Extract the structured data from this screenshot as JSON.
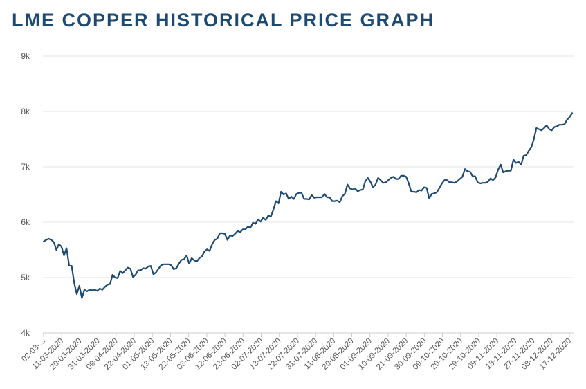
{
  "chart_data": {
    "type": "line",
    "title": "LME COPPER HISTORICAL PRICE GRAPH",
    "xlabel": "",
    "ylabel": "",
    "ylim": [
      4000,
      9000
    ],
    "y_ticks": [
      {
        "value": 4000,
        "label": "4k"
      },
      {
        "value": 5000,
        "label": "5k"
      },
      {
        "value": 6000,
        "label": "6k"
      },
      {
        "value": 7000,
        "label": "7k"
      },
      {
        "value": 8000,
        "label": "8k"
      },
      {
        "value": 9000,
        "label": "9k"
      }
    ],
    "x_tick_labels": [
      "02-03-...",
      "11-03-2020",
      "20-03-2020",
      "31-03-2020",
      "09-04-2020",
      "22-04-2020",
      "01-05-2020",
      "13-05-2020",
      "22-05-2020",
      "03-06-2020",
      "12-06-2020",
      "23-06-2020",
      "02-07-2020",
      "13-07-2020",
      "22-07-2020",
      "31-07-2020",
      "11-08-2020",
      "20-08-2020",
      "01-09-2020",
      "10-09-2020",
      "21-09-2020",
      "30-09-2020",
      "09-10-2020",
      "20-10-2020",
      "29-10-2020",
      "09-11-2020",
      "18-11-2020",
      "27-11-2020",
      "08-12-2020",
      "17-12-2020"
    ],
    "grid": true,
    "legend": "none",
    "line_color": "#1d4a73",
    "series": [
      {
        "name": "",
        "values": [
          5650,
          5680,
          5700,
          5680,
          5640,
          5500,
          5600,
          5560,
          5400,
          5530,
          5220,
          5210,
          4900,
          4700,
          4850,
          4630,
          4780,
          4750,
          4780,
          4770,
          4780,
          4760,
          4800,
          4780,
          4830,
          4870,
          4880,
          5050,
          5000,
          4990,
          5120,
          5080,
          5130,
          5180,
          5160,
          5010,
          5050,
          5130,
          5130,
          5170,
          5160,
          5200,
          5210,
          5060,
          5090,
          5160,
          5220,
          5240,
          5240,
          5240,
          5220,
          5150,
          5170,
          5250,
          5320,
          5330,
          5400,
          5250,
          5350,
          5310,
          5290,
          5350,
          5380,
          5470,
          5510,
          5480,
          5600,
          5680,
          5700,
          5800,
          5800,
          5790,
          5680,
          5760,
          5750,
          5790,
          5840,
          5820,
          5870,
          5870,
          5920,
          5900,
          5990,
          5970,
          6050,
          6010,
          6080,
          6040,
          6120,
          6100,
          6230,
          6380,
          6340,
          6550,
          6500,
          6520,
          6420,
          6460,
          6420,
          6510,
          6530,
          6530,
          6420,
          6420,
          6410,
          6490,
          6440,
          6450,
          6450,
          6450,
          6510,
          6450,
          6450,
          6380,
          6380,
          6390,
          6360,
          6470,
          6510,
          6680,
          6610,
          6590,
          6610,
          6560,
          6580,
          6590,
          6740,
          6800,
          6730,
          6630,
          6680,
          6800,
          6760,
          6710,
          6720,
          6760,
          6800,
          6820,
          6780,
          6780,
          6840,
          6840,
          6820,
          6700,
          6550,
          6550,
          6540,
          6580,
          6570,
          6630,
          6620,
          6430,
          6510,
          6520,
          6540,
          6620,
          6700,
          6760,
          6760,
          6720,
          6720,
          6710,
          6740,
          6780,
          6820,
          6960,
          6920,
          6910,
          6830,
          6830,
          6720,
          6700,
          6710,
          6710,
          6730,
          6790,
          6760,
          6810,
          6950,
          7040,
          6900,
          6920,
          6930,
          6930,
          7130,
          7070,
          7090,
          7040,
          7200,
          7210,
          7290,
          7350,
          7500,
          7700,
          7680,
          7660,
          7700,
          7750,
          7680,
          7660,
          7720,
          7730,
          7760,
          7760,
          7770,
          7850,
          7900,
          7970
        ]
      }
    ]
  }
}
